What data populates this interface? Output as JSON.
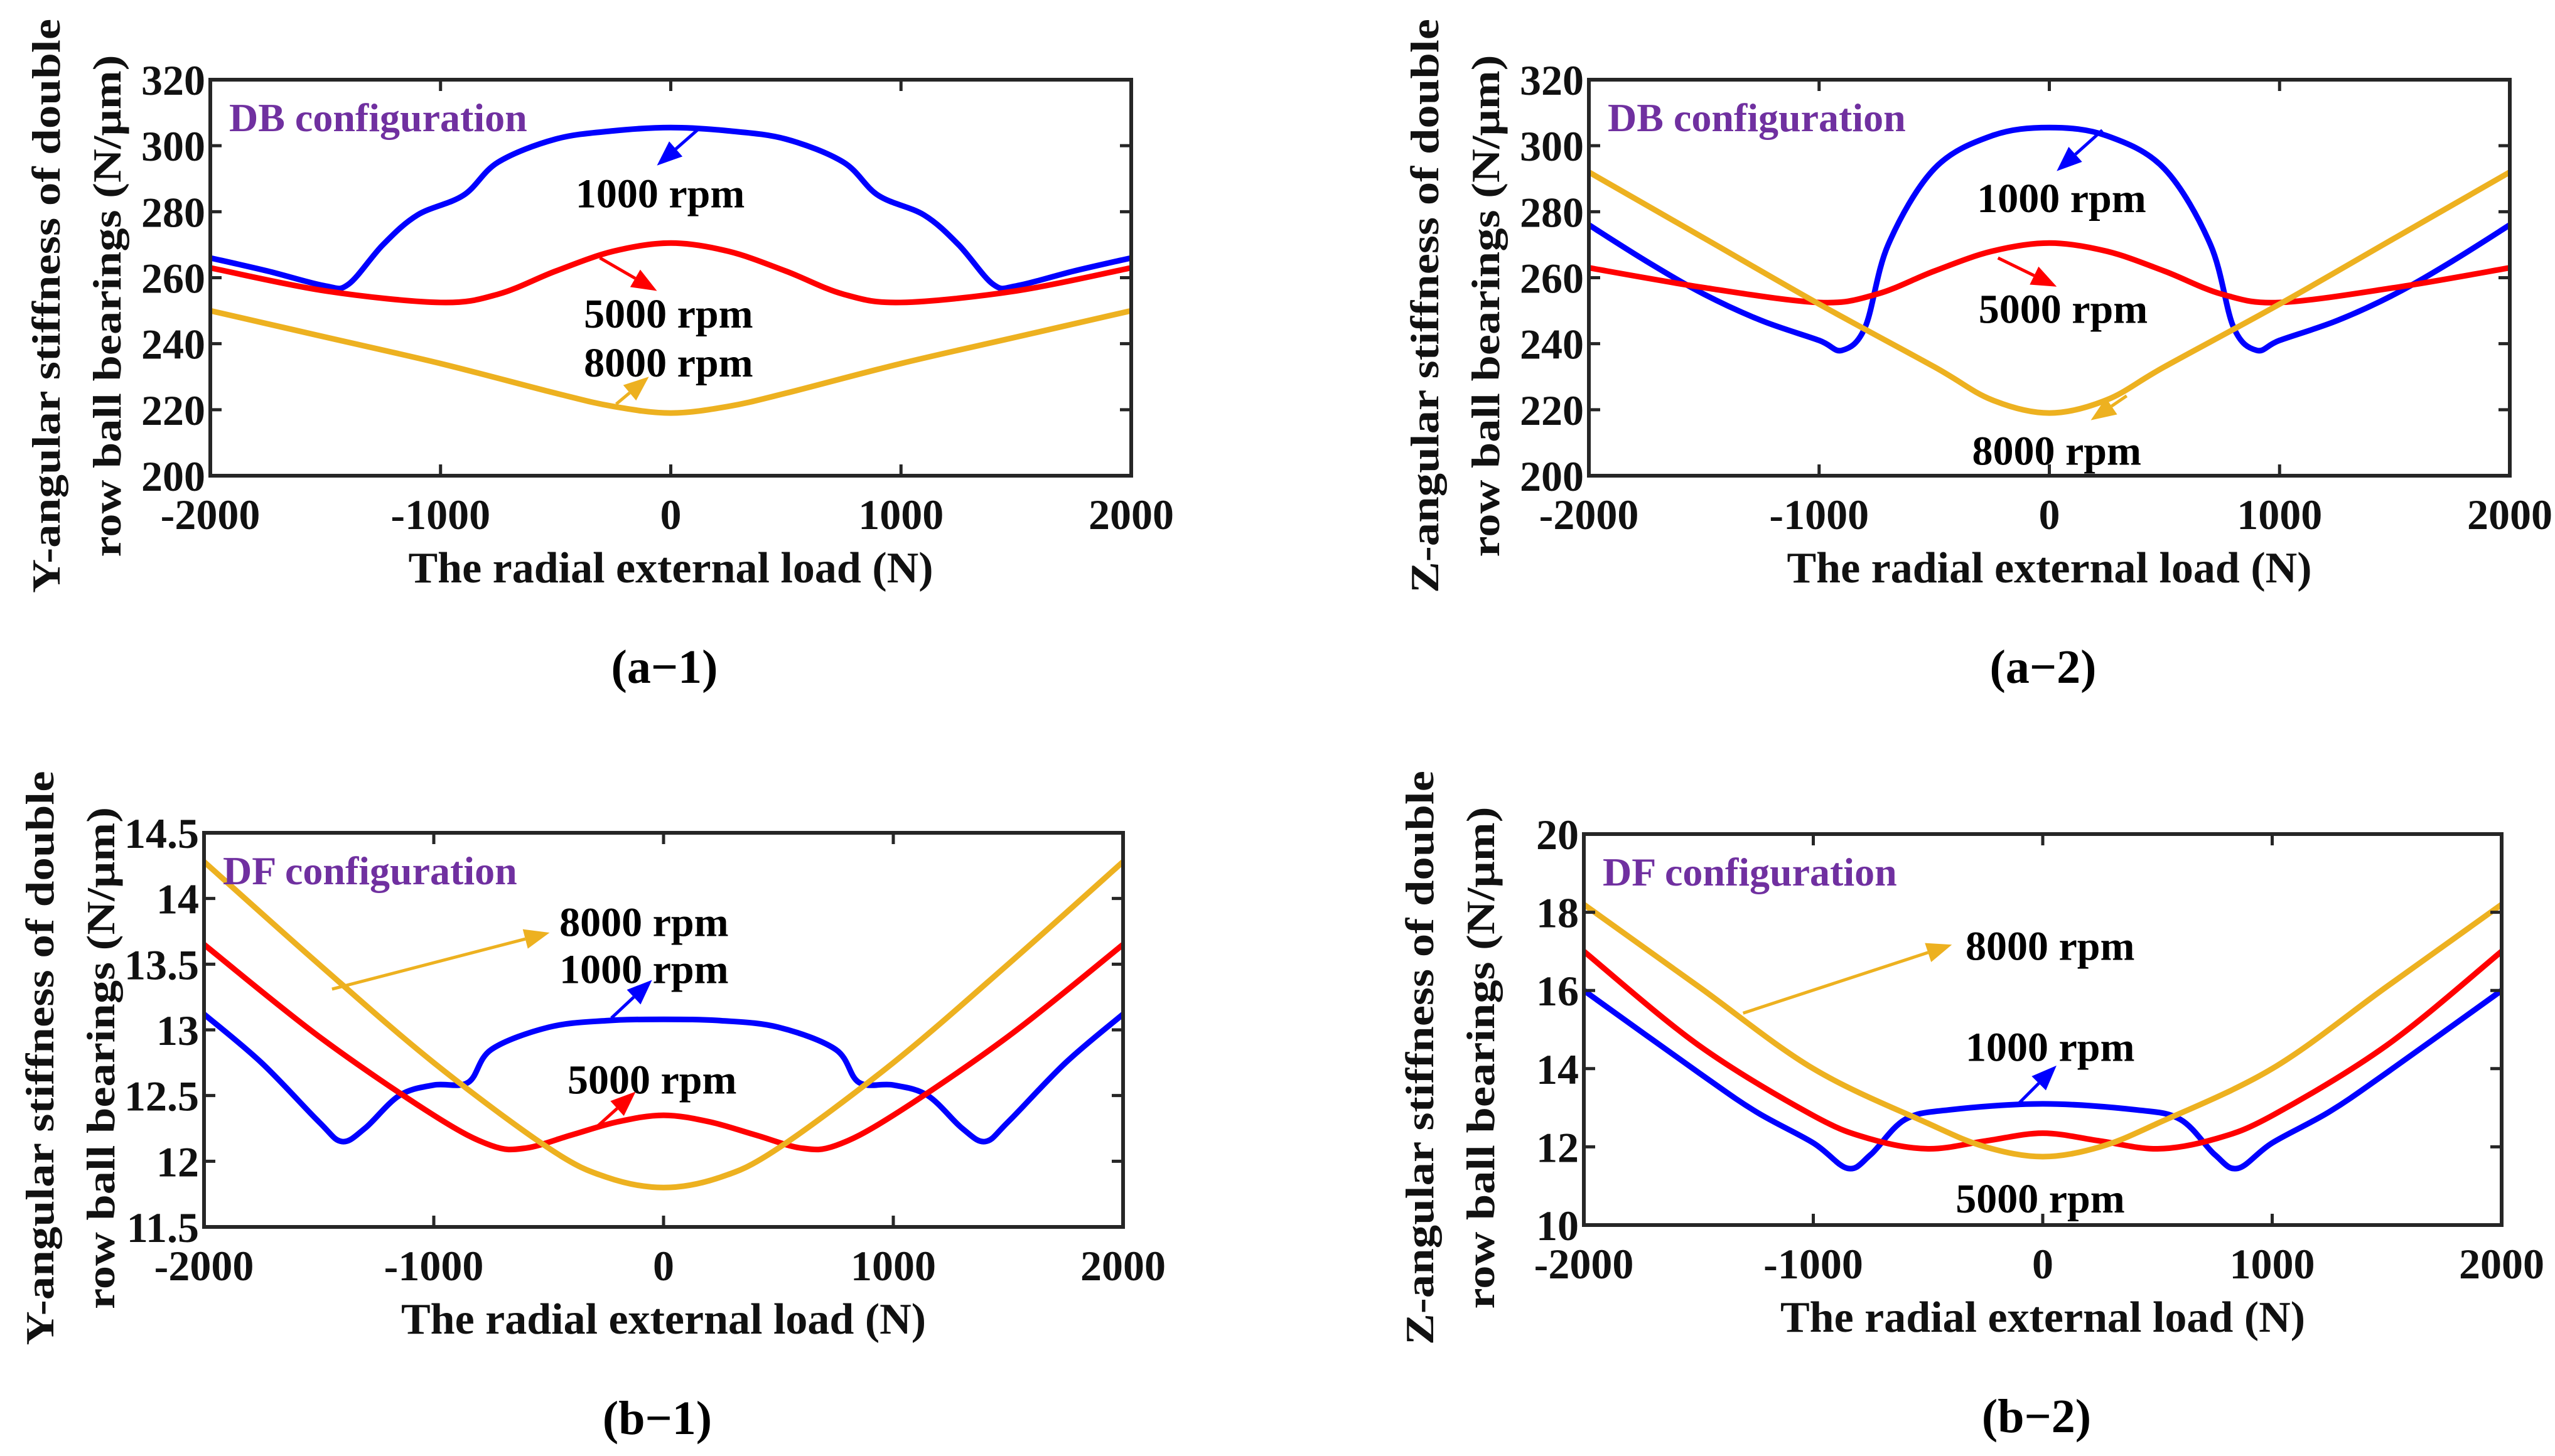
{
  "colors": {
    "1000 rpm": "#0000ff",
    "5000 rpm": "#ff0000",
    "8000 rpm": "#edb120",
    "config_label": "#7030a0",
    "axes": "#262626"
  },
  "chart_data": [
    {
      "id": "a-1",
      "type": "line",
      "panel_label": "(a−1)",
      "config": "DB configuration",
      "xlabel": "The radial external load (N)",
      "ylabel": [
        "Y-angular stiffness of double",
        "row ball bearings (N/μm)"
      ],
      "xlim": [
        -2000,
        2000
      ],
      "ylim": [
        200,
        320
      ],
      "xticks": [
        -2000,
        -1000,
        0,
        1000,
        2000
      ],
      "yticks": [
        200,
        220,
        240,
        260,
        280,
        300,
        320
      ],
      "grid": false,
      "series": [
        {
          "name": "1000 rpm",
          "x": [
            -2000,
            -1750,
            -1500,
            -1400,
            -1250,
            -1100,
            -900,
            -750,
            -500,
            -250,
            0,
            250,
            500,
            750,
            900,
            1100,
            1250,
            1400,
            1500,
            1750,
            2000
          ],
          "y": [
            266,
            262,
            257.5,
            258,
            270,
            279,
            285,
            295,
            302,
            304.5,
            305.5,
            304.5,
            302,
            295,
            285,
            279,
            270,
            258,
            257.5,
            262,
            266
          ]
        },
        {
          "name": "5000 rpm",
          "x": [
            -2000,
            -1500,
            -1000,
            -750,
            -500,
            -250,
            0,
            250,
            500,
            750,
            1000,
            1500,
            2000
          ],
          "y": [
            263,
            256,
            252.5,
            255,
            262,
            268,
            270.5,
            268,
            262,
            255,
            252.5,
            256,
            263
          ]
        },
        {
          "name": "8000 rpm",
          "x": [
            -2000,
            -1500,
            -1000,
            -500,
            -250,
            0,
            250,
            500,
            1000,
            1500,
            2000
          ],
          "y": [
            250,
            242,
            234,
            225,
            221,
            219,
            221,
            225,
            234,
            242,
            250
          ]
        }
      ],
      "annotations": [
        {
          "text": "1000 rpm",
          "series": "1000 rpm",
          "at": [
            -46,
            285.9
          ],
          "arrow_from": [
            131,
            305.7
          ],
          "arrow_to": [
            -60,
            294
          ]
        },
        {
          "text": "5000 rpm",
          "series": "5000 rpm",
          "at": [
            -10,
            249.4
          ],
          "arrow_from": [
            -308,
            266
          ],
          "arrow_to": [
            -60,
            256
          ]
        },
        {
          "text": "8000 rpm",
          "series": "8000 rpm",
          "at": [
            -10,
            234.6
          ],
          "arrow_from": [
            -237,
            221.7
          ],
          "arrow_to": [
            -95,
            230
          ]
        }
      ]
    },
    {
      "id": "a-2",
      "type": "line",
      "panel_label": "(a−2)",
      "config": "DB configuration",
      "xlabel": "The radial external load (N)",
      "ylabel": [
        "Z-angular stiffness of double",
        "row ball bearings (N/μm)"
      ],
      "xlim": [
        -2000,
        2000
      ],
      "ylim": [
        200,
        320
      ],
      "xticks": [
        -2000,
        -1000,
        0,
        1000,
        2000
      ],
      "yticks": [
        200,
        220,
        240,
        260,
        280,
        300,
        320
      ],
      "grid": false,
      "series": [
        {
          "name": "1000 rpm",
          "x": [
            -2000,
            -1750,
            -1500,
            -1250,
            -1000,
            -900,
            -800,
            -700,
            -500,
            -250,
            0,
            250,
            500,
            700,
            800,
            900,
            1000,
            1250,
            1500,
            1750,
            2000
          ],
          "y": [
            276,
            265,
            255,
            247,
            241,
            238,
            245,
            270,
            293,
            303,
            305.5,
            303,
            293,
            270,
            245,
            238,
            241,
            247,
            255,
            265,
            276
          ]
        },
        {
          "name": "5000 rpm",
          "x": [
            -2000,
            -1500,
            -1000,
            -750,
            -500,
            -250,
            0,
            250,
            500,
            750,
            1000,
            1500,
            2000
          ],
          "y": [
            263,
            257,
            252.5,
            255,
            262,
            268,
            270.5,
            268,
            262,
            255,
            252.5,
            257,
            263
          ]
        },
        {
          "name": "8000 rpm",
          "x": [
            -2000,
            -1500,
            -1000,
            -500,
            -250,
            0,
            250,
            500,
            1000,
            1500,
            2000
          ],
          "y": [
            292,
            272,
            252,
            233,
            223,
            219,
            223,
            233,
            252,
            272,
            292
          ]
        }
      ],
      "annotations": [
        {
          "text": "1000 rpm",
          "series": "1000 rpm",
          "at": [
            53,
            284.4
          ],
          "arrow_from": [
            230,
            304.7
          ],
          "arrow_to": [
            32,
            292.3
          ]
        },
        {
          "text": "5000 rpm",
          "series": "5000 rpm",
          "at": [
            60,
            250.9
          ],
          "arrow_from": [
            -223,
            266
          ],
          "arrow_to": [
            32,
            257.3
          ]
        },
        {
          "text": "8000 rpm",
          "series": "8000 rpm",
          "at": [
            32,
            207.9
          ],
          "arrow_from": [
            336,
            224.2
          ],
          "arrow_to": [
            180,
            216.8
          ]
        }
      ]
    },
    {
      "id": "b-1",
      "type": "line",
      "panel_label": "(b−1)",
      "config": "DF configuration",
      "xlabel": "The radial external load (N)",
      "ylabel": [
        "Y-angular stiffness of double",
        "row ball bearings (N/μm)"
      ],
      "xlim": [
        -2000,
        2000
      ],
      "ylim": [
        11.5,
        14.5
      ],
      "xticks": [
        -2000,
        -1000,
        0,
        1000,
        2000
      ],
      "yticks": [
        11.5,
        12,
        12.5,
        13,
        13.5,
        14,
        14.5
      ],
      "grid": false,
      "series": [
        {
          "name": "1000 rpm",
          "x": [
            -2000,
            -1750,
            -1500,
            -1400,
            -1300,
            -1150,
            -1000,
            -850,
            -750,
            -500,
            -250,
            0,
            250,
            500,
            750,
            850,
            1000,
            1150,
            1300,
            1400,
            1500,
            1750,
            2000
          ],
          "y": [
            13.12,
            12.75,
            12.3,
            12.15,
            12.25,
            12.5,
            12.58,
            12.6,
            12.85,
            13.02,
            13.07,
            13.08,
            13.07,
            13.02,
            12.85,
            12.6,
            12.58,
            12.5,
            12.25,
            12.15,
            12.3,
            12.75,
            13.12
          ]
        },
        {
          "name": "5000 rpm",
          "x": [
            -2000,
            -1500,
            -1000,
            -750,
            -600,
            -400,
            -200,
            0,
            200,
            400,
            600,
            750,
            1000,
            1500,
            2000
          ],
          "y": [
            13.65,
            12.95,
            12.35,
            12.12,
            12.1,
            12.2,
            12.3,
            12.35,
            12.3,
            12.2,
            12.1,
            12.12,
            12.35,
            12.95,
            13.65
          ]
        },
        {
          "name": "8000 rpm",
          "x": [
            -2000,
            -1500,
            -1000,
            -500,
            -250,
            0,
            250,
            500,
            1000,
            1500,
            2000
          ],
          "y": [
            14.28,
            13.5,
            12.75,
            12.1,
            11.88,
            11.8,
            11.88,
            12.1,
            12.75,
            13.5,
            14.28
          ]
        }
      ],
      "annotations": [
        {
          "text": "8000 rpm",
          "series": "8000 rpm",
          "at": [
            -85,
            13.83
          ],
          "arrow_from": [
            -1443,
            13.31
          ],
          "arrow_to": [
            -496,
            13.74
          ]
        },
        {
          "text": "1000 rpm",
          "series": "1000 rpm",
          "at": [
            -85,
            13.47
          ],
          "arrow_from": [
            -227,
            13.09
          ],
          "arrow_to": [
            -50,
            13.38
          ]
        },
        {
          "text": "5000 rpm",
          "series": "5000 rpm",
          "at": [
            -50,
            12.63
          ],
          "arrow_from": [
            -298,
            12.25
          ],
          "arrow_to": [
            -121,
            12.53
          ]
        }
      ]
    },
    {
      "id": "b-2",
      "type": "line",
      "panel_label": "(b−2)",
      "config": "DF configuration",
      "xlabel": "The radial external load (N)",
      "ylabel": [
        "Z-angular stiffness of double",
        "row ball bearings (N/μm)"
      ],
      "xlim": [
        -2000,
        2000
      ],
      "ylim": [
        10,
        20
      ],
      "xticks": [
        -2000,
        -1000,
        0,
        1000,
        2000
      ],
      "yticks": [
        10,
        12,
        14,
        16,
        18,
        20
      ],
      "grid": false,
      "series": [
        {
          "name": "1000 rpm",
          "x": [
            -2000,
            -1500,
            -1250,
            -1000,
            -850,
            -750,
            -600,
            -400,
            0,
            400,
            600,
            750,
            850,
            1000,
            1250,
            1500,
            2000
          ],
          "y": [
            16,
            13.9,
            12.9,
            12.1,
            11.45,
            11.8,
            12.7,
            12.95,
            13.1,
            12.95,
            12.7,
            11.8,
            11.45,
            12.1,
            12.9,
            13.9,
            16
          ]
        },
        {
          "name": "5000 rpm",
          "x": [
            -2000,
            -1500,
            -1000,
            -750,
            -500,
            -250,
            0,
            250,
            500,
            750,
            1000,
            1500,
            2000
          ],
          "y": [
            17,
            14.6,
            12.8,
            12.2,
            11.95,
            12.15,
            12.35,
            12.15,
            11.95,
            12.2,
            12.8,
            14.6,
            17
          ]
        },
        {
          "name": "8000 rpm",
          "x": [
            -2000,
            -1500,
            -1000,
            -500,
            -250,
            0,
            250,
            500,
            1000,
            1500,
            2000
          ],
          "y": [
            18.2,
            16.1,
            14.0,
            12.6,
            12.0,
            11.75,
            12.0,
            12.6,
            14.0,
            16.1,
            18.2
          ]
        }
      ],
      "annotations": [
        {
          "text": "8000 rpm",
          "series": "8000 rpm",
          "at": [
            32,
            17.17
          ],
          "arrow_from": [
            -1306,
            15.42
          ],
          "arrow_to": [
            -396,
            17.17
          ]
        },
        {
          "text": "1000 rpm",
          "series": "1000 rpm",
          "at": [
            32,
            14.58
          ],
          "arrow_from": [
            -110,
            13.08
          ],
          "arrow_to": [
            60,
            14.08
          ]
        },
        {
          "text": "5000 rpm",
          "series": "5000 rpm",
          "at": [
            -11,
            10.71
          ]
        }
      ]
    }
  ]
}
